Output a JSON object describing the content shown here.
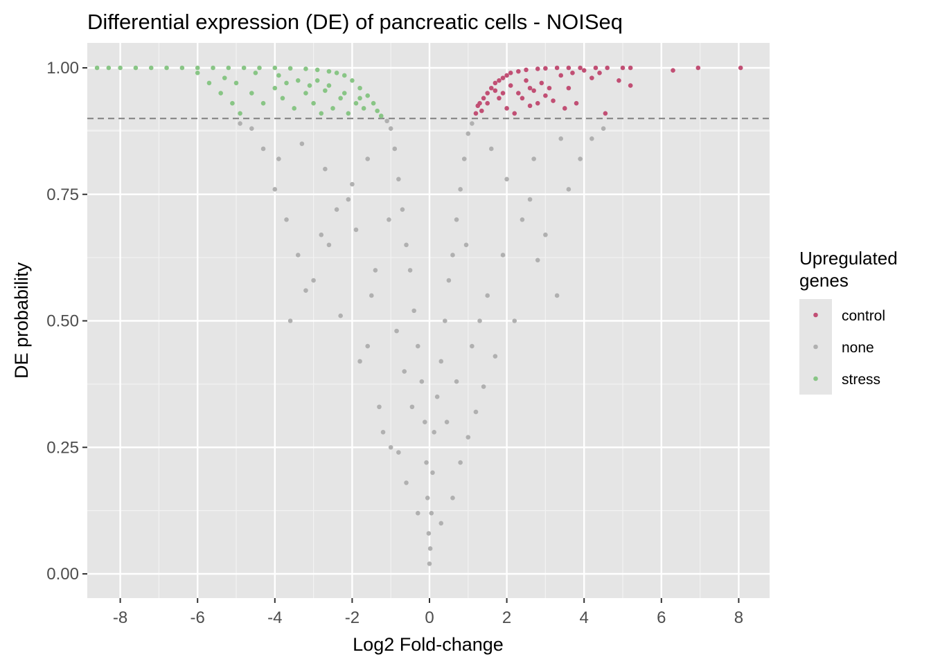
{
  "chart_data": {
    "type": "scatter",
    "title": "Differential expression (DE) of pancreatic cells - NOISeq",
    "xlabel": "Log2 Fold-change",
    "ylabel": "DE probability",
    "xlim": [
      -8.9,
      8.7
    ],
    "ylim": [
      -0.05,
      1.05
    ],
    "x_ticks": [
      -8,
      -6,
      -4,
      -2,
      0,
      2,
      4,
      6,
      8
    ],
    "x_tick_labels": [
      "-8",
      "-6",
      "-4",
      "-2",
      "0",
      "2",
      "4",
      "6",
      "8"
    ],
    "y_ticks": [
      0,
      0.25,
      0.5,
      0.75,
      1
    ],
    "y_tick_labels": [
      "0.00",
      "0.25",
      "0.50",
      "0.75",
      "1.00"
    ],
    "threshold": 0.9,
    "threshold_style": "dashed",
    "grid": true,
    "legend": {
      "title": "Upregulated\ngenes",
      "placement": "right",
      "entries": [
        {
          "label": "control",
          "color": "#c14f74"
        },
        {
          "label": "none",
          "color": "#b0b0b0"
        },
        {
          "label": "stress",
          "color": "#88c585"
        }
      ]
    },
    "series": [
      {
        "name": "control",
        "color": "#c14f74",
        "points": [
          [
            1.2,
            0.91
          ],
          [
            1.25,
            0.925
          ],
          [
            1.3,
            0.93
          ],
          [
            1.4,
            0.94
          ],
          [
            1.5,
            0.95
          ],
          [
            1.6,
            0.96
          ],
          [
            1.7,
            0.97
          ],
          [
            1.8,
            0.975
          ],
          [
            1.9,
            0.98
          ],
          [
            2.0,
            0.985
          ],
          [
            2.1,
            0.99
          ],
          [
            2.3,
            0.993
          ],
          [
            2.5,
            0.996
          ],
          [
            2.8,
            0.998
          ],
          [
            3.0,
            0.999
          ],
          [
            3.3,
            1.0
          ],
          [
            3.6,
            1.0
          ],
          [
            3.9,
            1.0
          ],
          [
            4.3,
            1.0
          ],
          [
            4.6,
            1.0
          ],
          [
            5.0,
            1.0
          ],
          [
            5.2,
            1.0
          ],
          [
            6.95,
            1.0
          ],
          [
            8.05,
            1.0
          ],
          [
            6.3,
            0.995
          ],
          [
            5.2,
            0.965
          ],
          [
            4.9,
            0.975
          ],
          [
            4.55,
            0.91
          ],
          [
            4.2,
            0.98
          ],
          [
            3.8,
            0.93
          ],
          [
            3.5,
            0.92
          ],
          [
            3.2,
            0.935
          ],
          [
            2.8,
            0.93
          ],
          [
            2.6,
            0.925
          ],
          [
            2.4,
            0.94
          ],
          [
            2.2,
            0.91
          ],
          [
            2.0,
            0.92
          ],
          [
            1.8,
            0.94
          ],
          [
            3.1,
            0.96
          ],
          [
            2.7,
            0.955
          ],
          [
            2.3,
            0.95
          ],
          [
            1.9,
            0.95
          ],
          [
            2.9,
            0.97
          ],
          [
            3.4,
            0.985
          ],
          [
            3.7,
            0.99
          ],
          [
            4.0,
            0.995
          ],
          [
            2.5,
            0.975
          ],
          [
            2.1,
            0.965
          ],
          [
            1.7,
            0.955
          ],
          [
            1.5,
            0.93
          ],
          [
            1.35,
            0.915
          ],
          [
            3.6,
            0.96
          ],
          [
            4.4,
            0.99
          ],
          [
            3.0,
            0.945
          ],
          [
            2.6,
            0.96
          ]
        ]
      },
      {
        "name": "none",
        "color": "#b0b0b0",
        "points": [
          [
            0,
            0.02
          ],
          [
            0.02,
            0.05
          ],
          [
            -0.02,
            0.08
          ],
          [
            0.05,
            0.12
          ],
          [
            -0.05,
            0.15
          ],
          [
            0.08,
            0.2
          ],
          [
            -0.08,
            0.22
          ],
          [
            0.12,
            0.28
          ],
          [
            -0.12,
            0.3
          ],
          [
            0.2,
            0.35
          ],
          [
            -0.2,
            0.38
          ],
          [
            0.3,
            0.42
          ],
          [
            -0.3,
            0.45
          ],
          [
            0.4,
            0.5
          ],
          [
            -0.4,
            0.52
          ],
          [
            0.5,
            0.58
          ],
          [
            -0.5,
            0.6
          ],
          [
            0.6,
            0.63
          ],
          [
            -0.6,
            0.65
          ],
          [
            0.7,
            0.7
          ],
          [
            -0.7,
            0.72
          ],
          [
            0.8,
            0.76
          ],
          [
            -0.8,
            0.78
          ],
          [
            0.9,
            0.82
          ],
          [
            -0.9,
            0.84
          ],
          [
            1.0,
            0.87
          ],
          [
            -1.0,
            0.88
          ],
          [
            1.1,
            0.89
          ],
          [
            -1.1,
            0.895
          ],
          [
            -1.6,
            0.82
          ],
          [
            -2.1,
            0.74
          ],
          [
            -2.6,
            0.65
          ],
          [
            -3.2,
            0.56
          ],
          [
            -3.6,
            0.5
          ],
          [
            -4.0,
            0.76
          ],
          [
            -3.7,
            0.7
          ],
          [
            -3.4,
            0.63
          ],
          [
            -3.0,
            0.58
          ],
          [
            -2.8,
            0.67
          ],
          [
            -2.4,
            0.72
          ],
          [
            -2.0,
            0.77
          ],
          [
            -1.8,
            0.42
          ],
          [
            -1.6,
            0.45
          ],
          [
            -1.3,
            0.33
          ],
          [
            -1.2,
            0.28
          ],
          [
            -1.0,
            0.25
          ],
          [
            -0.8,
            0.24
          ],
          [
            -1.4,
            0.6
          ],
          [
            -1.9,
            0.68
          ],
          [
            -2.3,
            0.51
          ],
          [
            -4.3,
            0.84
          ],
          [
            -4.6,
            0.88
          ],
          [
            -4.9,
            0.89
          ],
          [
            -3.9,
            0.82
          ],
          [
            1.6,
            0.84
          ],
          [
            2.0,
            0.78
          ],
          [
            2.4,
            0.7
          ],
          [
            2.8,
            0.62
          ],
          [
            3.3,
            0.55
          ],
          [
            2.2,
            0.5
          ],
          [
            1.7,
            0.43
          ],
          [
            1.4,
            0.37
          ],
          [
            1.2,
            0.32
          ],
          [
            1.0,
            0.27
          ],
          [
            0.8,
            0.22
          ],
          [
            3.6,
            0.76
          ],
          [
            3.9,
            0.82
          ],
          [
            4.2,
            0.86
          ],
          [
            4.5,
            0.88
          ],
          [
            3.0,
            0.67
          ],
          [
            2.6,
            0.74
          ],
          [
            1.9,
            0.63
          ],
          [
            1.5,
            0.55
          ],
          [
            1.1,
            0.45
          ],
          [
            0.7,
            0.38
          ],
          [
            0.45,
            0.3
          ],
          [
            -0.45,
            0.33
          ],
          [
            -0.65,
            0.4
          ],
          [
            -0.85,
            0.48
          ],
          [
            0.6,
            0.15
          ],
          [
            -0.6,
            0.18
          ],
          [
            0.3,
            0.1
          ],
          [
            -0.3,
            0.12
          ],
          [
            1.3,
            0.5
          ],
          [
            -1.5,
            0.55
          ],
          [
            2.7,
            0.82
          ],
          [
            -2.7,
            0.8
          ],
          [
            3.4,
            0.86
          ],
          [
            -3.3,
            0.85
          ],
          [
            0.95,
            0.65
          ],
          [
            -1.05,
            0.7
          ]
        ]
      },
      {
        "name": "stress",
        "color": "#88c585",
        "points": [
          [
            -8.6,
            1.0
          ],
          [
            -8.3,
            1.0
          ],
          [
            -8.0,
            1.0
          ],
          [
            -7.6,
            1.0
          ],
          [
            -7.2,
            1.0
          ],
          [
            -6.8,
            1.0
          ],
          [
            -6.4,
            1.0
          ],
          [
            -6.0,
            1.0
          ],
          [
            -5.6,
            1.0
          ],
          [
            -5.2,
            1.0
          ],
          [
            -4.8,
            1.0
          ],
          [
            -4.4,
            1.0
          ],
          [
            -4.0,
            1.0
          ],
          [
            -3.6,
            0.999
          ],
          [
            -3.2,
            0.998
          ],
          [
            -2.9,
            0.996
          ],
          [
            -2.6,
            0.993
          ],
          [
            -2.4,
            0.99
          ],
          [
            -2.2,
            0.985
          ],
          [
            -2.0,
            0.975
          ],
          [
            -1.8,
            0.96
          ],
          [
            -1.6,
            0.945
          ],
          [
            -1.45,
            0.93
          ],
          [
            -1.35,
            0.915
          ],
          [
            -1.25,
            0.905
          ],
          [
            -6.0,
            0.99
          ],
          [
            -5.7,
            0.97
          ],
          [
            -5.4,
            0.95
          ],
          [
            -5.1,
            0.93
          ],
          [
            -4.9,
            0.91
          ],
          [
            -5.3,
            0.98
          ],
          [
            -5.0,
            0.97
          ],
          [
            -4.6,
            0.95
          ],
          [
            -4.3,
            0.93
          ],
          [
            -4.0,
            0.96
          ],
          [
            -3.8,
            0.94
          ],
          [
            -3.5,
            0.92
          ],
          [
            -3.2,
            0.95
          ],
          [
            -3.0,
            0.93
          ],
          [
            -2.8,
            0.91
          ],
          [
            -2.5,
            0.92
          ],
          [
            -2.3,
            0.94
          ],
          [
            -2.1,
            0.91
          ],
          [
            -1.9,
            0.93
          ],
          [
            -1.7,
            0.92
          ],
          [
            -3.9,
            0.985
          ],
          [
            -3.4,
            0.975
          ],
          [
            -3.1,
            0.965
          ],
          [
            -2.7,
            0.955
          ],
          [
            -2.2,
            0.95
          ],
          [
            -1.8,
            0.94
          ],
          [
            -4.5,
            0.99
          ],
          [
            -3.7,
            0.97
          ],
          [
            -2.9,
            0.975
          ],
          [
            -2.6,
            0.965
          ]
        ]
      }
    ]
  }
}
